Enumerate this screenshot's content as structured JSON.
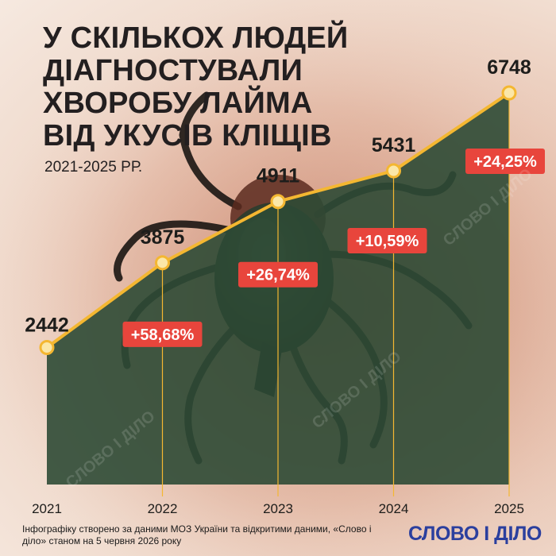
{
  "title": "У СКІЛЬКОХ ЛЮДЕЙ ДІАГНОСТУВАЛИ ХВОРОБУ ЛАЙМА ВІД УКУСІВ КЛІЩІВ",
  "subtitle": "2021-2025 РР.",
  "footnote": "Інфографіку створено за даними МОЗ України та відкритими даними, «Слово і діло» станом на 5 червня 2026 року",
  "logo": {
    "text": "СЛОВО І ДІЛО"
  },
  "watermark": "СЛОВО І ДІЛО",
  "colors": {
    "line": "#f4b731",
    "area": "#2e4a35",
    "badge": "#e8453c",
    "text": "#1d1d1b"
  },
  "chart_data": {
    "type": "area",
    "x": [
      "2021",
      "2022",
      "2023",
      "2024",
      "2025"
    ],
    "values": [
      2442,
      3875,
      4911,
      5431,
      6748
    ],
    "value_labels": [
      "2442",
      "3875",
      "4911",
      "5431",
      "6748"
    ],
    "changes": [
      null,
      "+58,68%",
      "+26,74%",
      "+10,59%",
      "+24,25%"
    ],
    "title": "У СКІЛЬКОХ ЛЮДЕЙ ДІАГНОСТУВАЛИ ХВОРОБУ ЛАЙМА ВІД УКУСІВ КЛІЩІВ",
    "subtitle": "2021-2025 РР.",
    "grid": false
  }
}
